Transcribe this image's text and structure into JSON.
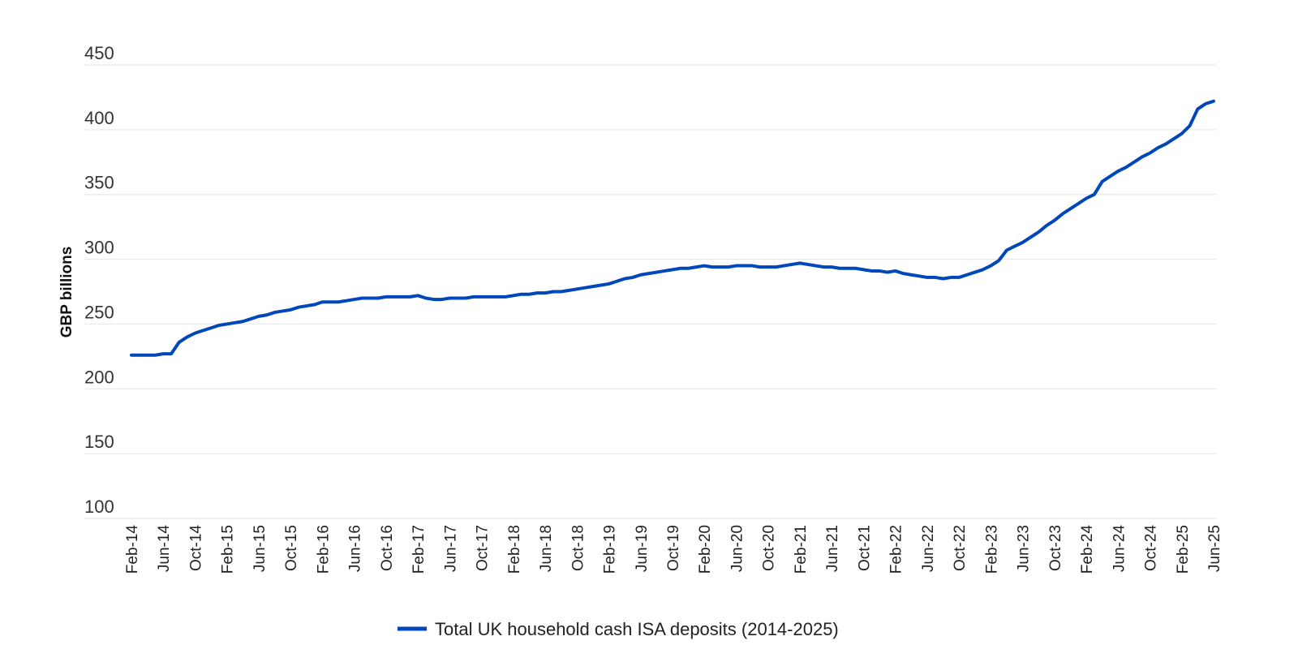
{
  "chart_data": {
    "type": "line",
    "title": "",
    "xlabel": "",
    "ylabel": "GBP billions",
    "ylim": [
      100,
      450
    ],
    "yticks": [
      "100",
      "150",
      "200",
      "250",
      "300",
      "350",
      "400",
      "450"
    ],
    "grid": true,
    "legend_position": "bottom-center",
    "x_tick_labels": [
      "Feb-14",
      "Jun-14",
      "Oct-14",
      "Feb-15",
      "Jun-15",
      "Oct-15",
      "Feb-16",
      "Jun-16",
      "Oct-16",
      "Feb-17",
      "Jun-17",
      "Oct-17",
      "Feb-18",
      "Jun-18",
      "Oct-18",
      "Feb-19",
      "Jun-19",
      "Oct-19",
      "Feb-20",
      "Jun-20",
      "Oct-20",
      "Feb-21",
      "Jun-21",
      "Oct-21",
      "Feb-22",
      "Jun-22",
      "Oct-22",
      "Feb-23",
      "Jun-23",
      "Oct-23",
      "Feb-24",
      "Jun-24",
      "Oct-24",
      "Feb-25",
      "Jun-25"
    ],
    "series": [
      {
        "name": "Total UK household cash ISA deposits (2014-2025)",
        "color": "#0047bb",
        "start_month": "Feb-14",
        "values": [
          226,
          226,
          226,
          226,
          227,
          227,
          236,
          240,
          243,
          245,
          247,
          249,
          250,
          251,
          252,
          254,
          256,
          257,
          259,
          260,
          261,
          263,
          264,
          265,
          267,
          267,
          267,
          268,
          269,
          270,
          270,
          270,
          271,
          271,
          271,
          271,
          272,
          270,
          269,
          269,
          270,
          270,
          270,
          271,
          271,
          271,
          271,
          271,
          272,
          273,
          273,
          274,
          274,
          275,
          275,
          276,
          277,
          278,
          279,
          280,
          281,
          283,
          285,
          286,
          288,
          289,
          290,
          291,
          292,
          293,
          293,
          294,
          295,
          294,
          294,
          294,
          295,
          295,
          295,
          294,
          294,
          294,
          295,
          296,
          297,
          296,
          295,
          294,
          294,
          293,
          293,
          293,
          292,
          291,
          291,
          290,
          291,
          289,
          288,
          287,
          286,
          286,
          285,
          286,
          286,
          288,
          290,
          292,
          295,
          299,
          307,
          310,
          313,
          317,
          321,
          326,
          330,
          335,
          339,
          343,
          347,
          350,
          360,
          364,
          368,
          371,
          375,
          379,
          382,
          386,
          389,
          393,
          397,
          403,
          416,
          420,
          422
        ]
      }
    ]
  }
}
